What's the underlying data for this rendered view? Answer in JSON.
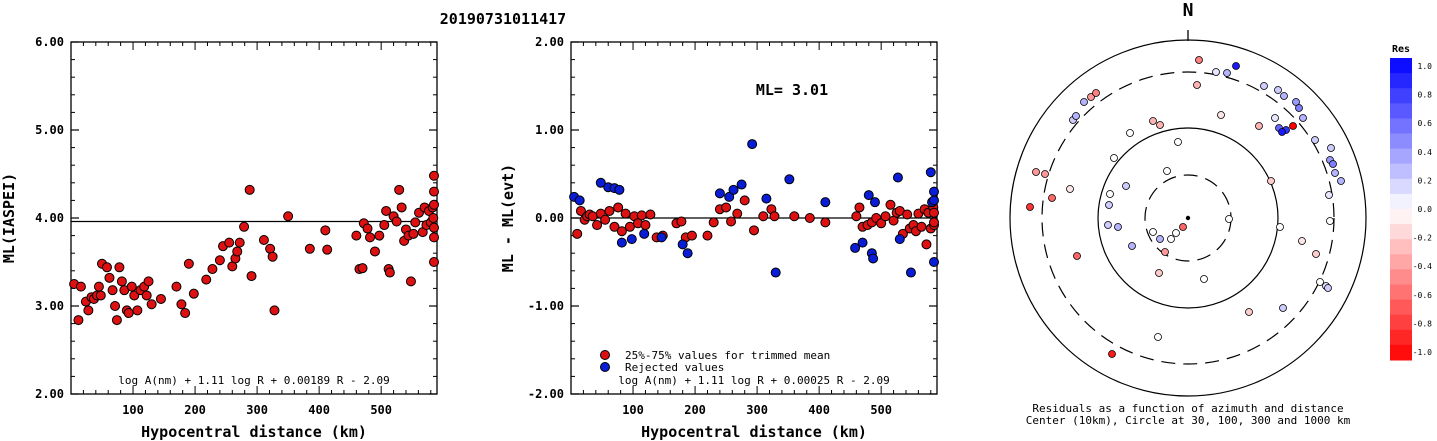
{
  "title": "20190731011417",
  "chart_data": [
    {
      "type": "scatter",
      "xlabel": "Hypocentral distance (km)",
      "ylabel": "ML(IASPEI)",
      "xlim": [
        0,
        590
      ],
      "ylim": [
        2.0,
        6.0
      ],
      "xticks": [
        "100",
        "200",
        "300",
        "400",
        "500"
      ],
      "yticks": [
        "2.00",
        "3.00",
        "4.00",
        "5.00",
        "6.00"
      ],
      "fit_line_y": 3.96,
      "formula": "log A(nm) + 1.11 log R + 0.00189 R - 2.09",
      "series": [
        {
          "color": "#dd1111",
          "points": [
            [
              5,
              3.25
            ],
            [
              12,
              2.84
            ],
            [
              16,
              3.22
            ],
            [
              24,
              3.05
            ],
            [
              28,
              2.95
            ],
            [
              33,
              3.1
            ],
            [
              37,
              3.08
            ],
            [
              42,
              3.12
            ],
            [
              45,
              3.22
            ],
            [
              48,
              3.12
            ],
            [
              50,
              3.48
            ],
            [
              58,
              3.44
            ],
            [
              62,
              3.32
            ],
            [
              67,
              3.18
            ],
            [
              71,
              3.0
            ],
            [
              74,
              2.84
            ],
            [
              78,
              3.44
            ],
            [
              82,
              3.28
            ],
            [
              86,
              3.18
            ],
            [
              90,
              2.95
            ],
            [
              93,
              2.92
            ],
            [
              98,
              3.22
            ],
            [
              102,
              3.12
            ],
            [
              107,
              2.95
            ],
            [
              112,
              3.18
            ],
            [
              118,
              3.22
            ],
            [
              122,
              3.12
            ],
            [
              125,
              3.28
            ],
            [
              130,
              3.02
            ],
            [
              145,
              3.08
            ],
            [
              170,
              3.22
            ],
            [
              178,
              3.02
            ],
            [
              184,
              2.92
            ],
            [
              190,
              3.48
            ],
            [
              198,
              3.14
            ],
            [
              218,
              3.3
            ],
            [
              228,
              3.42
            ],
            [
              240,
              3.52
            ],
            [
              245,
              3.68
            ],
            [
              255,
              3.72
            ],
            [
              260,
              3.45
            ],
            [
              265,
              3.54
            ],
            [
              268,
              3.62
            ],
            [
              272,
              3.72
            ],
            [
              279,
              3.9
            ],
            [
              288,
              4.32
            ],
            [
              291,
              3.34
            ],
            [
              311,
              3.75
            ],
            [
              321,
              3.65
            ],
            [
              325,
              3.56
            ],
            [
              328,
              2.95
            ],
            [
              350,
              4.02
            ],
            [
              385,
              3.65
            ],
            [
              410,
              3.86
            ],
            [
              413,
              3.64
            ],
            [
              460,
              3.8
            ],
            [
              465,
              3.42
            ],
            [
              470,
              3.43
            ],
            [
              472,
              3.94
            ],
            [
              478,
              3.88
            ],
            [
              482,
              3.78
            ],
            [
              490,
              3.62
            ],
            [
              497,
              3.8
            ],
            [
              505,
              3.92
            ],
            [
              508,
              4.08
            ],
            [
              512,
              3.42
            ],
            [
              514,
              3.38
            ],
            [
              520,
              4.02
            ],
            [
              525,
              3.96
            ],
            [
              529,
              4.32
            ],
            [
              533,
              4.12
            ],
            [
              537,
              3.74
            ],
            [
              540,
              3.87
            ],
            [
              544,
              3.8
            ],
            [
              548,
              3.28
            ],
            [
              552,
              3.82
            ],
            [
              555,
              3.95
            ],
            [
              561,
              4.06
            ],
            [
              567,
              3.84
            ],
            [
              570,
              4.12
            ],
            [
              573,
              3.92
            ],
            [
              577,
              4.08
            ],
            [
              580,
              3.95
            ],
            [
              583,
              4.12
            ],
            [
              584,
              4.0
            ],
            [
              586,
              4.48
            ],
            [
              588,
              3.78
            ],
            [
              590,
              3.89
            ],
            [
              592,
              4.15
            ],
            [
              594,
              3.5
            ],
            [
              597,
              4.3
            ]
          ]
        }
      ]
    },
    {
      "type": "scatter",
      "xlabel": "Hypocentral distance (km)",
      "ylabel": "ML - ML(evt)",
      "xlim": [
        0,
        590
      ],
      "ylim": [
        -2.0,
        2.0
      ],
      "xticks": [
        "100",
        "200",
        "300",
        "400",
        "500"
      ],
      "yticks": [
        "-2.00",
        "-1.00",
        "0.00",
        "1.00",
        "2.00"
      ],
      "fit_line_y": 0.0,
      "annotation": "ML= 3.01",
      "formula": "log A(nm) + 1.11 log R + 0.00025 R - 2.09",
      "series": [
        {
          "name": "25%-75% values for trimmed mean",
          "color": "#dd1111",
          "points": [
            [
              10,
              -0.18
            ],
            [
              16,
              0.08
            ],
            [
              22,
              -0.02
            ],
            [
              26,
              0.02
            ],
            [
              30,
              0.04
            ],
            [
              35,
              0.02
            ],
            [
              42,
              -0.08
            ],
            [
              48,
              0.05
            ],
            [
              55,
              -0.02
            ],
            [
              62,
              0.08
            ],
            [
              70,
              -0.1
            ],
            [
              76,
              0.12
            ],
            [
              82,
              -0.15
            ],
            [
              88,
              0.05
            ],
            [
              95,
              -0.1
            ],
            [
              102,
              0.02
            ],
            [
              108,
              -0.06
            ],
            [
              114,
              0.03
            ],
            [
              120,
              -0.08
            ],
            [
              128,
              0.04
            ],
            [
              138,
              -0.22
            ],
            [
              148,
              -0.2
            ],
            [
              170,
              -0.06
            ],
            [
              178,
              -0.04
            ],
            [
              185,
              -0.22
            ],
            [
              195,
              -0.2
            ],
            [
              220,
              -0.2
            ],
            [
              230,
              -0.05
            ],
            [
              240,
              0.1
            ],
            [
              250,
              0.12
            ],
            [
              258,
              -0.04
            ],
            [
              268,
              0.05
            ],
            [
              280,
              0.2
            ],
            [
              295,
              -0.14
            ],
            [
              310,
              0.02
            ],
            [
              323,
              0.1
            ],
            [
              328,
              0.02
            ],
            [
              360,
              0.02
            ],
            [
              385,
              0.0
            ],
            [
              410,
              -0.05
            ],
            [
              460,
              0.02
            ],
            [
              465,
              0.12
            ],
            [
              470,
              -0.1
            ],
            [
              478,
              -0.08
            ],
            [
              485,
              -0.05
            ],
            [
              492,
              0.0
            ],
            [
              500,
              -0.06
            ],
            [
              507,
              0.02
            ],
            [
              515,
              0.15
            ],
            [
              520,
              -0.03
            ],
            [
              525,
              0.06
            ],
            [
              530,
              0.08
            ],
            [
              535,
              -0.18
            ],
            [
              542,
              0.04
            ],
            [
              546,
              -0.12
            ],
            [
              552,
              -0.08
            ],
            [
              556,
              -0.15
            ],
            [
              560,
              0.05
            ],
            [
              565,
              -0.1
            ],
            [
              570,
              0.1
            ],
            [
              573,
              -0.3
            ],
            [
              576,
              0.06
            ],
            [
              580,
              -0.12
            ],
            [
              584,
              0.12
            ],
            [
              588,
              -0.08
            ],
            [
              592,
              -0.05
            ],
            [
              596,
              0.06
            ]
          ]
        },
        {
          "name": "Rejected values",
          "color": "#0a1dd6",
          "points": [
            [
              5,
              0.24
            ],
            [
              14,
              0.2
            ],
            [
              48,
              0.4
            ],
            [
              60,
              0.35
            ],
            [
              70,
              0.34
            ],
            [
              78,
              0.32
            ],
            [
              82,
              -0.28
            ],
            [
              98,
              -0.24
            ],
            [
              118,
              -0.18
            ],
            [
              146,
              -0.22
            ],
            [
              180,
              -0.3
            ],
            [
              188,
              -0.4
            ],
            [
              240,
              0.28
            ],
            [
              255,
              0.24
            ],
            [
              262,
              0.32
            ],
            [
              275,
              0.38
            ],
            [
              292,
              0.84
            ],
            [
              315,
              0.22
            ],
            [
              330,
              -0.62
            ],
            [
              352,
              0.44
            ],
            [
              410,
              0.18
            ],
            [
              458,
              -0.34
            ],
            [
              470,
              -0.28
            ],
            [
              480,
              0.26
            ],
            [
              485,
              -0.4
            ],
            [
              487,
              -0.46
            ],
            [
              490,
              0.18
            ],
            [
              527,
              0.46
            ],
            [
              530,
              -0.24
            ],
            [
              548,
              -0.62
            ],
            [
              580,
              0.52
            ],
            [
              582,
              0.18
            ],
            [
              590,
              0.2
            ],
            [
              593,
              -0.5
            ],
            [
              596,
              0.3
            ]
          ]
        }
      ]
    },
    {
      "type": "polar-scatter",
      "north_label": "N",
      "caption_line1": "Residuals as a function of azimuth and distance",
      "caption_line2": "Center (10km), Circle at 30, 100, 300 and 1000 km",
      "colorbar_title": "Res",
      "colorbar_ticks": [
        "1.0",
        "0.8",
        "0.6",
        "0.4",
        "0.2",
        "0.0",
        "-0.2",
        "-0.4",
        "-0.6",
        "-0.8",
        "-1.0"
      ]
    }
  ]
}
